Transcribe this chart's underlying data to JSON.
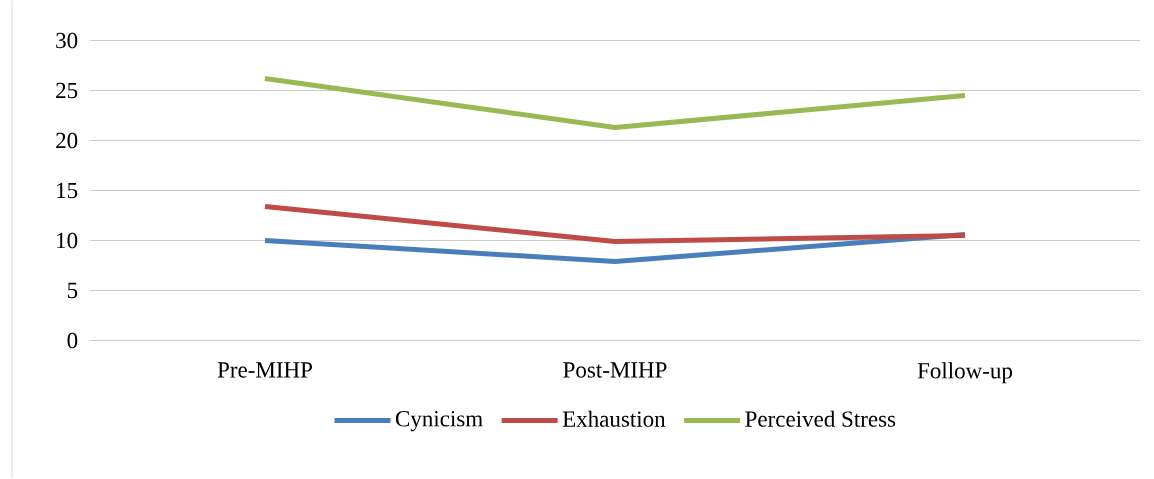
{
  "chart_data": {
    "type": "line",
    "categories": [
      "Pre-MIHP",
      "Post-MIHP",
      "Follow-up"
    ],
    "series": [
      {
        "name": "Cynicism",
        "color": "#4a7ebb",
        "values": [
          10.0,
          7.9,
          10.6
        ]
      },
      {
        "name": "Exhaustion",
        "color": "#be4b48",
        "values": [
          13.4,
          9.9,
          10.5
        ]
      },
      {
        "name": "Perceived Stress",
        "color": "#98b954",
        "values": [
          26.2,
          21.3,
          24.5
        ]
      }
    ],
    "ylim": [
      0,
      30
    ],
    "yticks": [
      0,
      5,
      10,
      15,
      20,
      25,
      30
    ],
    "grid": "y",
    "legend": "bottom",
    "marker": "none",
    "line_style": "solid"
  }
}
